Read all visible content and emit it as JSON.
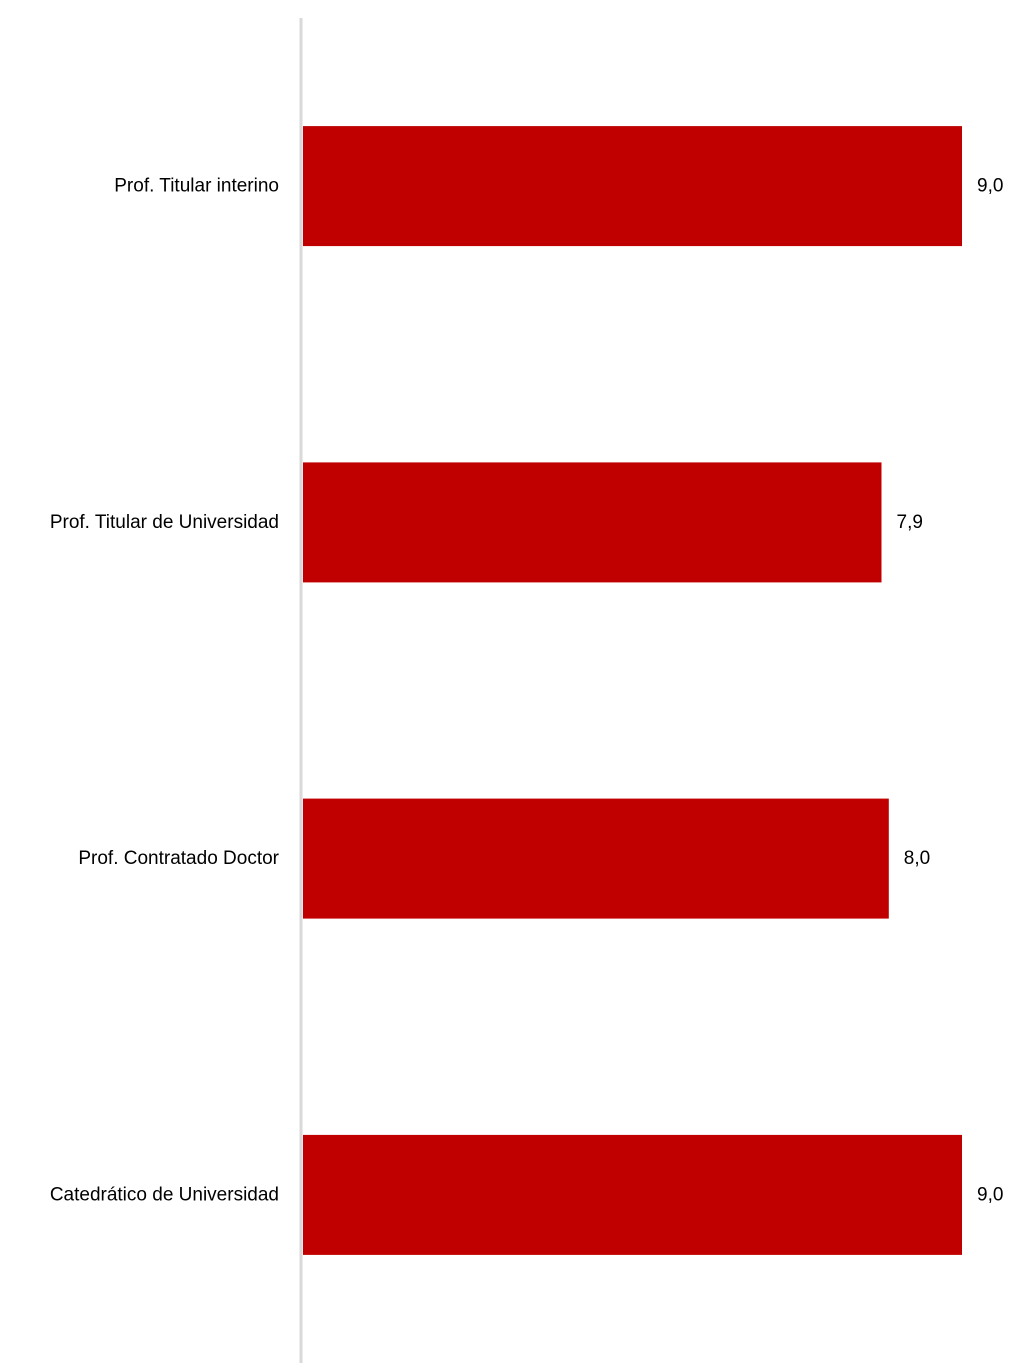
{
  "chart_data": {
    "type": "bar",
    "orientation": "horizontal",
    "title": "",
    "xlabel": "",
    "ylabel": "",
    "categories": [
      "Prof. Titular interino",
      "Prof. Titular de Universidad",
      "Prof. Contratado Doctor",
      "Catedrático de Universidad"
    ],
    "values": [
      9.0,
      7.9,
      8.0,
      9.0
    ],
    "value_labels": [
      "9,0",
      "7,9",
      "8,0",
      "9,0"
    ],
    "xlim": [
      0,
      9.0
    ],
    "grid": false,
    "legend": "none",
    "colors": {
      "bar": "#C00000",
      "axis": "#D9D9D9",
      "text": "#000000"
    }
  }
}
